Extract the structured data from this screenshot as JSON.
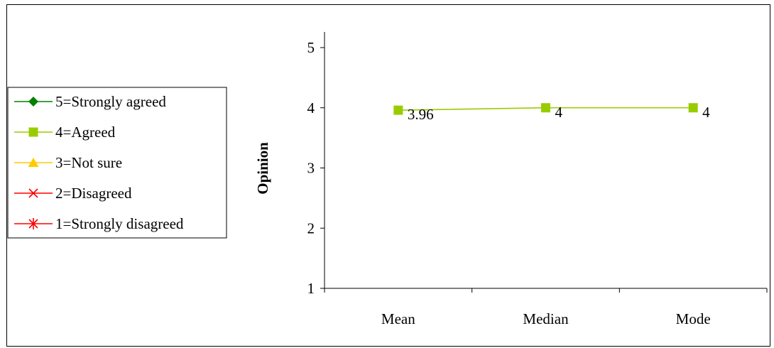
{
  "chart_data": {
    "type": "line",
    "categories": [
      "Mean",
      "Median",
      "Mode"
    ],
    "ylabel": "Opinion",
    "xlabel": "",
    "title": "",
    "ylim": [
      1,
      5
    ],
    "yticks": [
      "1",
      "2",
      "3",
      "4",
      "5"
    ],
    "grid": false,
    "legend_position": "left",
    "legend": [
      {
        "label": "5=Strongly agreed",
        "color": "#008000",
        "marker": "diamond"
      },
      {
        "label": "4=Agreed",
        "color": "#99CC00",
        "marker": "square"
      },
      {
        "label": "3=Not sure",
        "color": "#FFCC00",
        "marker": "triangle"
      },
      {
        "label": "2=Disagreed",
        "color": "#FF0000",
        "marker": "x"
      },
      {
        "label": "1=Strongly disagreed",
        "color": "#FF0000",
        "marker": "star"
      }
    ],
    "series": [
      {
        "name": "4=Agreed",
        "color": "#99CC00",
        "marker": "square",
        "values": [
          3.96,
          4,
          4
        ],
        "data_labels": [
          "3.96",
          "4",
          "4"
        ]
      }
    ]
  }
}
